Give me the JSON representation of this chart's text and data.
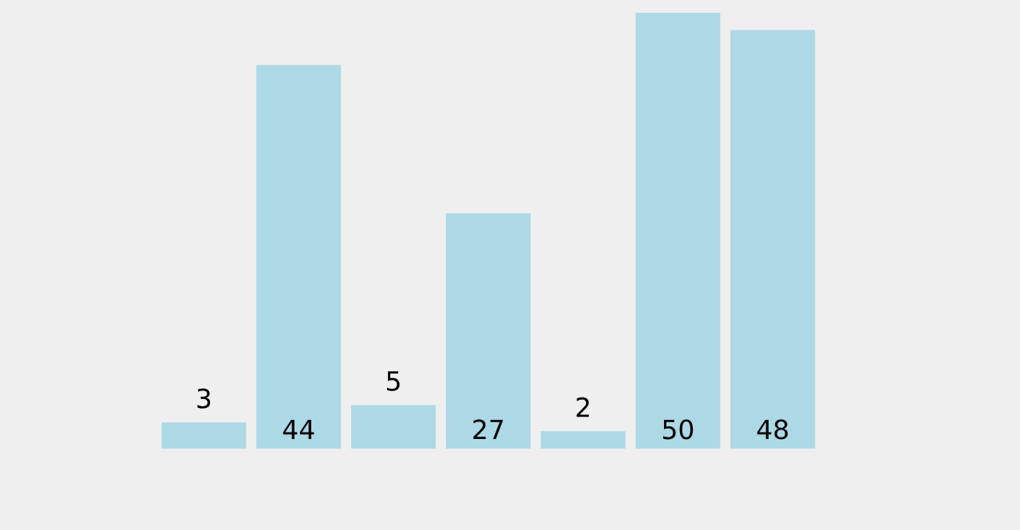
{
  "chart_data": {
    "type": "bar",
    "categories": [
      null,
      null,
      null,
      null,
      null,
      null,
      null
    ],
    "values": [
      3,
      44,
      5,
      27,
      2,
      50,
      48
    ],
    "color": "#add8e6",
    "data_labels": true
  }
}
